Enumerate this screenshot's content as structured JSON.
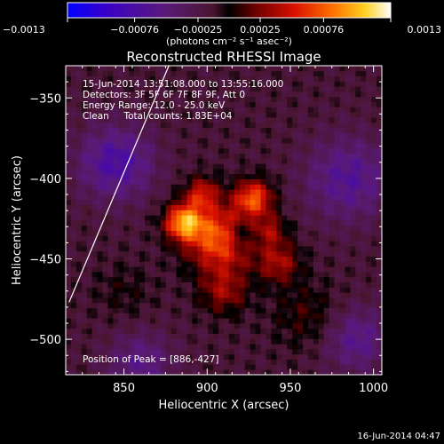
{
  "chart_data": {
    "type": "heatmap",
    "title": "Reconstructed RHESSI Image",
    "xlabel": "Heliocentric X (arcsec)",
    "ylabel": "Heliocentric Y (arcsec)",
    "xlim": [
      815,
      1005
    ],
    "ylim": [
      -522,
      -330
    ],
    "x_ticks": [
      850,
      900,
      950,
      1000
    ],
    "x_tick_labels": [
      "850",
      "900",
      "950",
      "1000"
    ],
    "y_ticks": [
      -350,
      -400,
      -450,
      -500
    ],
    "y_tick_labels": [
      "−350",
      "−400",
      "−450",
      "−500"
    ],
    "colorbar": {
      "min": -0.0013,
      "max": 0.0013,
      "ticks": [
        -0.0013,
        -0.00076,
        -0.00025,
        0.00025,
        0.00076,
        0.0013
      ],
      "tick_labels": [
        "−0.0013",
        "−0.00076",
        "−0.00025",
        "0.00025",
        "0.00076",
        "0.0013"
      ],
      "units": "(photons cm⁻² s⁻¹ asec⁻²)"
    },
    "annotations": [
      "15-Jun-2014 13:51:08.000 to 13:55:16.000",
      "Detectors: 3F 5F 6F 7F 8F 9F, Att 0",
      "Energy Range: 12.0 - 25.0 keV",
      "Clean     Total counts: 1.83E+04"
    ],
    "peak_label": "Position of Peak = [886,-427]",
    "peak": [
      886,
      -427
    ],
    "limb_line": [
      [
        817,
        -477
      ],
      [
        877,
        -330
      ]
    ],
    "sources": [
      {
        "x": 908,
        "y": -437,
        "amp": 0.00095,
        "sigma": 14
      },
      {
        "x": 886,
        "y": -427,
        "amp": 0.00105,
        "sigma": 8
      },
      {
        "x": 928,
        "y": -412,
        "amp": 0.00085,
        "sigma": 8
      },
      {
        "x": 897,
        "y": -409,
        "amp": 0.0006,
        "sigma": 7
      },
      {
        "x": 943,
        "y": -452,
        "amp": 0.0005,
        "sigma": 9
      },
      {
        "x": 910,
        "y": -470,
        "amp": 0.00045,
        "sigma": 10
      },
      {
        "x": 938,
        "y": -432,
        "amp": 0.0004,
        "sigma": 7
      },
      {
        "x": 920,
        "y": -435,
        "amp": -0.0004,
        "sigma": 7
      },
      {
        "x": 960,
        "y": -485,
        "amp": 0.00025,
        "sigma": 14
      },
      {
        "x": 850,
        "y": -470,
        "amp": 0.00015,
        "sigma": 12
      },
      {
        "x": 845,
        "y": -390,
        "amp": -0.0006,
        "sigma": 16
      },
      {
        "x": 985,
        "y": -400,
        "amp": -0.0005,
        "sigma": 18
      },
      {
        "x": 860,
        "y": -515,
        "amp": -0.0004,
        "sigma": 14
      },
      {
        "x": 990,
        "y": -500,
        "amp": -0.00045,
        "sigma": 14
      }
    ],
    "background": -0.00015
  },
  "footer": {
    "timestamp": "16-Jun-2014 04:47"
  }
}
